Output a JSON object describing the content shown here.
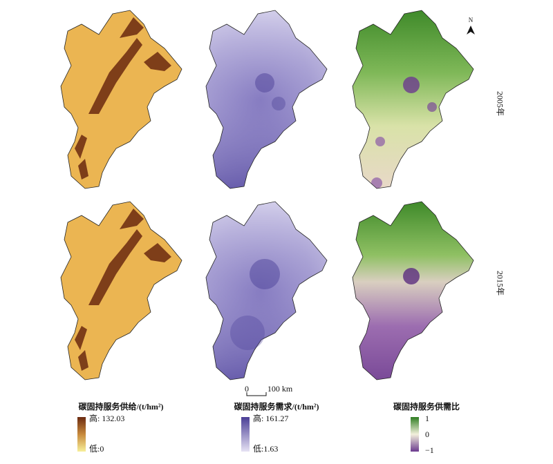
{
  "north": "N",
  "rows": [
    {
      "label": "2005年"
    },
    {
      "label": "2015年"
    }
  ],
  "scale_bar": {
    "start": "0",
    "end": "100 km"
  },
  "legends": [
    {
      "title": "碳固持服务供给/(t/hm²)",
      "high": "高: 132.03",
      "low": "低:0"
    },
    {
      "title": "碳固持服务需求/(t/hm²)",
      "high": "高: 161.27",
      "low": "低:1.63"
    },
    {
      "title": "碳固持服务供需比",
      "high": "1",
      "mid": "0",
      "low": "−1"
    }
  ]
}
